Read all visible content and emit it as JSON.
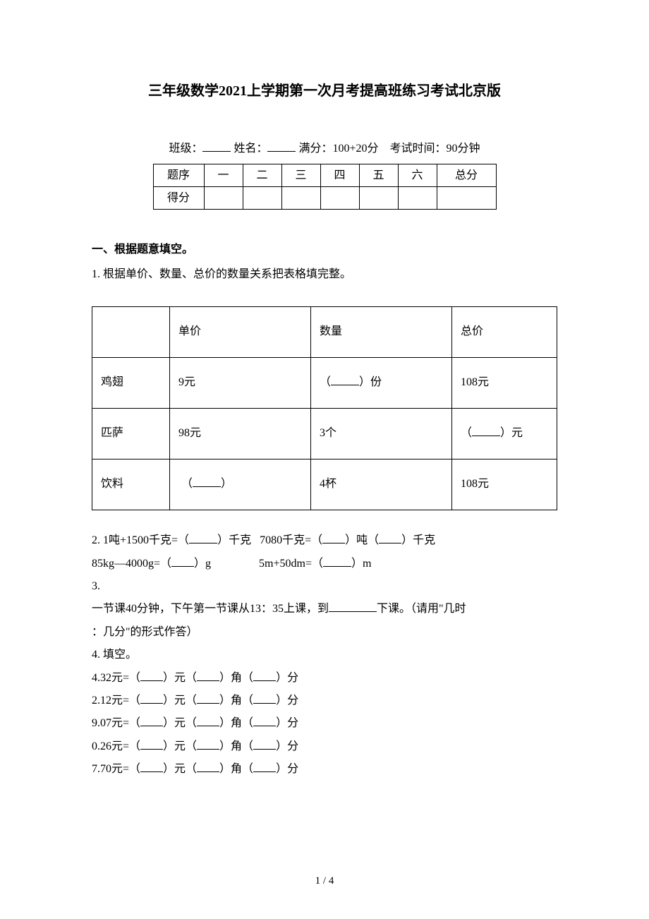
{
  "title": "三年级数学2021上学期第一次月考提高班练习考试北京版",
  "info": {
    "class_label": "班级：",
    "name_label": "姓名：",
    "full_marks_label": "满分：",
    "full_marks_value": "100+20分",
    "duration_label": "考试时间：",
    "duration_value": "90分钟"
  },
  "score_table": {
    "row1": [
      "题序",
      "一",
      "二",
      "三",
      "四",
      "五",
      "六",
      "总分"
    ],
    "row2_label": "得分"
  },
  "section1": {
    "heading": "一、根据题意填空。",
    "q1": "1. 根据单价、数量、总价的数量关系把表格填完整。",
    "table": {
      "headers": [
        "",
        "单价",
        "数量",
        "总价"
      ],
      "rows": [
        [
          "鸡翅",
          "9元",
          "（_____）份",
          "108元"
        ],
        [
          "匹萨",
          "98元",
          "3个",
          "（_____）元"
        ],
        [
          "饮料",
          "（_____）",
          "4杯",
          "108元"
        ]
      ]
    },
    "q2_pre": "2. 1吨+1500千克=（",
    "q2_a": "）千克    7080千克=（",
    "q2_b": "）吨（",
    "q2_c": "）千克",
    "q2_line2_a": "85kg—4000g=（",
    "q2_line2_b": "）g",
    "q2_line2_c": "5m+50dm=（",
    "q2_line2_d": "）m",
    "q3_num": "3.",
    "q3_text_a": "一节课40分钟，下午第一节课从13：35上课，到",
    "q3_text_b": "下课。（请用\"几时",
    "q3_text_c": "：几分\"的形式作答）",
    "q4_title": "4. 填空。",
    "q4_items": [
      "4.32元=（____）元（____）角（____）分",
      "2.12元=（____）元（____）角（____）分",
      "9.07元=（____）元（____）角（____）分",
      "0.26元=（____）元（____）角（____）分",
      "7.70元=（____）元（____）角（____）分"
    ]
  },
  "footer": "1 / 4"
}
